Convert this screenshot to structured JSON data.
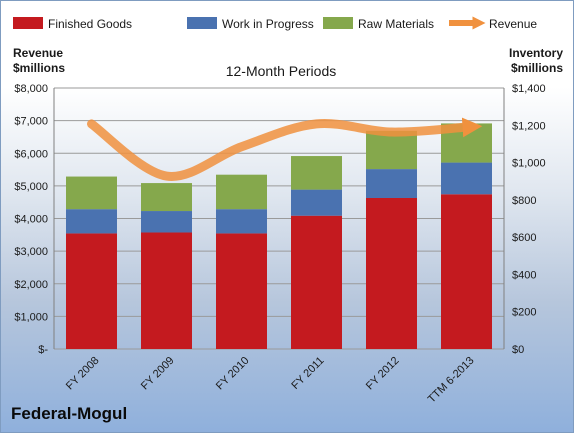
{
  "company": "Federal-Mogul",
  "chart_data": {
    "type": "bar",
    "stacked": true,
    "title": "12-Month Periods",
    "categories": [
      "FY 2008",
      "FY 2009",
      "FY 2010",
      "FY 2011",
      "FY 2012",
      "TTM 6-2013"
    ],
    "left_axis": {
      "label_line1": "Revenue",
      "label_line2": "$millions",
      "range": [
        0,
        8000
      ],
      "ticks": [
        "$-",
        "$1,000",
        "$2,000",
        "$3,000",
        "$4,000",
        "$5,000",
        "$6,000",
        "$7,000",
        "$8,000"
      ]
    },
    "right_axis": {
      "label_line1": "Inventory",
      "label_line2": "$millions",
      "range": [
        0,
        1400
      ],
      "ticks": [
        "$0",
        "$200",
        "$400",
        "$600",
        "$800",
        "$1,000",
        "$1,200",
        "$1,400"
      ]
    },
    "series": [
      {
        "name": "Finished Goods",
        "color": "#c41a1f",
        "axis": "right",
        "values": [
          620,
          625,
          620,
          715,
          810,
          830
        ]
      },
      {
        "name": "Work in Progress",
        "color": "#4a72b0",
        "axis": "right",
        "values": [
          130,
          115,
          130,
          140,
          155,
          170
        ]
      },
      {
        "name": "Raw Materials",
        "color": "#85a84c",
        "axis": "right",
        "values": [
          175,
          150,
          185,
          180,
          205,
          210
        ]
      }
    ],
    "line_series": {
      "name": "Revenue",
      "color": "#f0913e",
      "axis": "left",
      "values": [
        6900,
        5300,
        6200,
        6900,
        6650,
        6800
      ]
    },
    "grid": true,
    "legend_position": "top"
  }
}
